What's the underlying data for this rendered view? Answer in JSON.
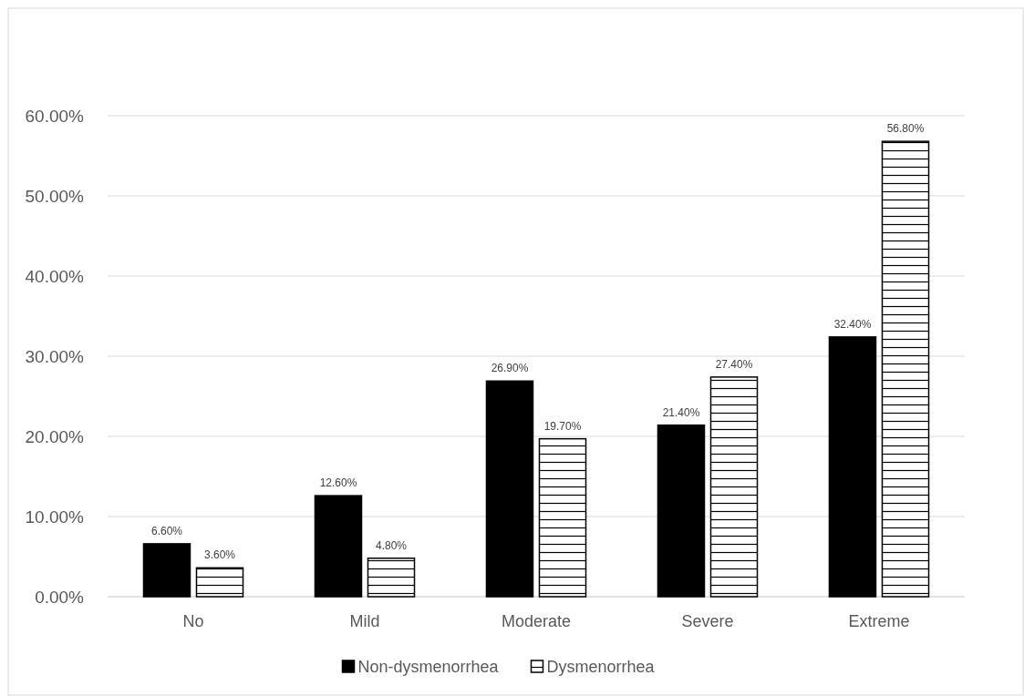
{
  "chart_data": {
    "type": "bar",
    "categories": [
      "No",
      "Mild",
      "Moderate",
      "Severe",
      "Extreme"
    ],
    "series": [
      {
        "name": "Non-dysmenorrhea",
        "color": "#000000",
        "values": [
          6.6,
          12.6,
          26.9,
          21.4,
          32.4
        ],
        "value_labels": [
          "6.60%",
          "12.60%",
          "26.90%",
          "21.40%",
          "32.40%"
        ]
      },
      {
        "name": "Dysmenorrhea",
        "color": "#ffffff",
        "values": [
          3.6,
          4.8,
          19.7,
          27.4,
          56.8
        ],
        "value_labels": [
          "3.60%",
          "4.80%",
          "19.70%",
          "27.40%",
          "56.80%"
        ]
      }
    ],
    "ylim": [
      0,
      60
    ],
    "yticks": [
      {
        "value": 0,
        "label": "0.00%"
      },
      {
        "value": 10,
        "label": "10.00%"
      },
      {
        "value": 20,
        "label": "20.00%"
      },
      {
        "value": 30,
        "label": "30.00%"
      },
      {
        "value": 40,
        "label": "40.00%"
      },
      {
        "value": 50,
        "label": "50.00%"
      },
      {
        "value": 60,
        "label": "60.00%"
      }
    ],
    "grid": "y",
    "legend": "bottom"
  }
}
